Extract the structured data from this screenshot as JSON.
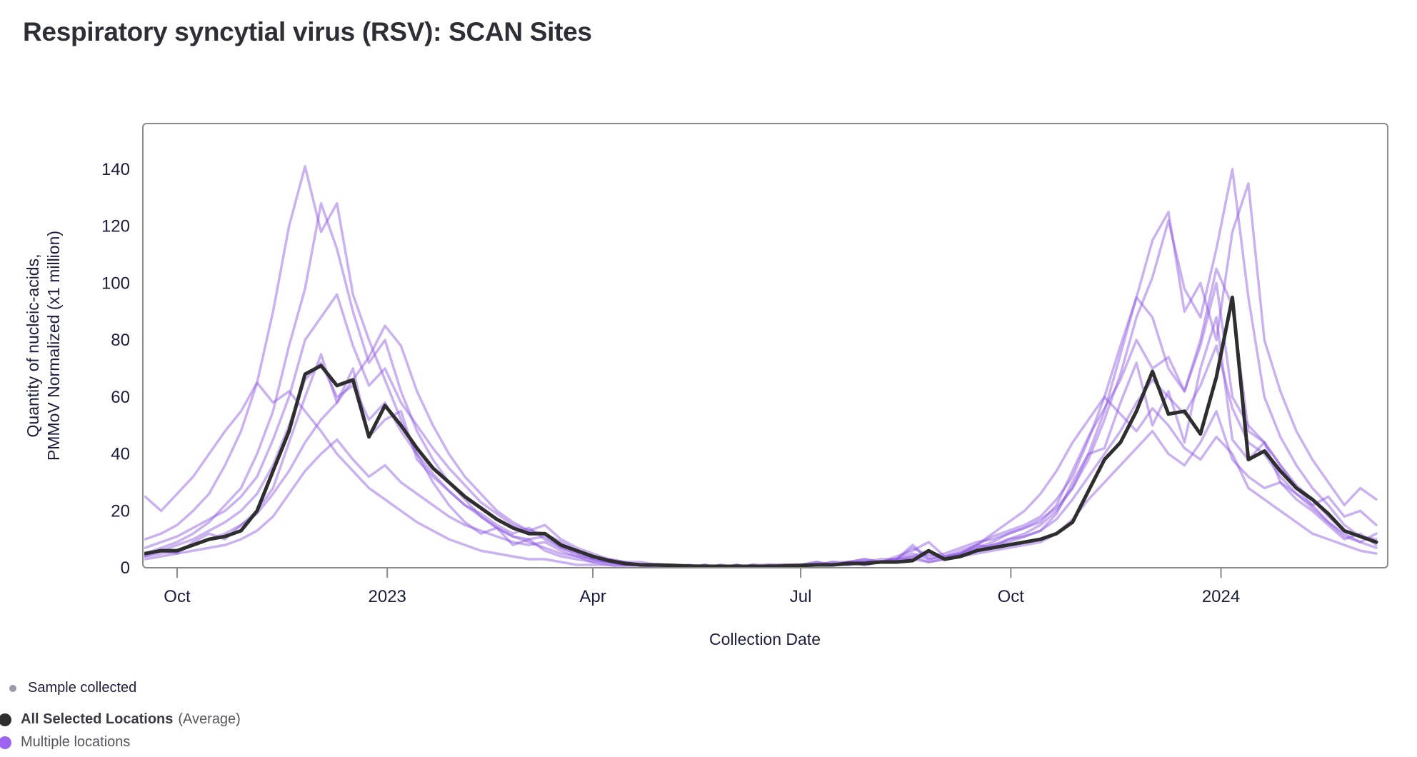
{
  "title": "Respiratory syncytial virus (RSV): SCAN Sites",
  "colors": {
    "title_text": "#2e2e36",
    "axis_line": "#8a8a8a",
    "tick_text": "#1c1c3c",
    "axis_title_text": "#1c1c3c",
    "average_line": "#2e2e2e",
    "location_line": "#8a55e0",
    "legend_sample_dot": "#9a9aa8",
    "legend_average_dot": "#2e2e2e",
    "legend_locations_dot": "#9e63f0"
  },
  "legend": {
    "sample_label": "Sample collected",
    "average_label_bold": "All Selected Locations",
    "average_label_suffix": "(Average)",
    "locations_label": "Multiple locations"
  },
  "chart_data": {
    "type": "line",
    "title": "Respiratory syncytial virus (RSV): SCAN Sites",
    "xlabel": "Collection Date",
    "ylabel_line1": "Quantity of nucleic-acids,",
    "ylabel_line2": "PMMoV Normalized (x1 million)",
    "grid": false,
    "legend_position": "bottom-left",
    "x_axis": {
      "label": "Collection Date",
      "start_date": "2022-09-16",
      "end_date": "2024-03-14",
      "ticks": [
        {
          "label": "Oct",
          "date": "2022-10-01"
        },
        {
          "label": "2023",
          "date": "2023-01-01"
        },
        {
          "label": "Apr",
          "date": "2023-04-01"
        },
        {
          "label": "Jul",
          "date": "2023-07-01"
        },
        {
          "label": "Oct",
          "date": "2023-10-01"
        },
        {
          "label": "2024",
          "date": "2024-01-01"
        }
      ]
    },
    "y_axis": {
      "ticks": [
        0,
        20,
        40,
        60,
        80,
        100,
        120,
        140
      ],
      "range": [
        0,
        156
      ]
    },
    "sampling_interval_days": 7,
    "week0_date": "2022-09-17",
    "average_series": {
      "name": "All Selected Locations (Average)",
      "values": [
        5,
        6,
        6,
        8,
        10,
        11,
        13,
        20,
        34,
        48,
        68,
        71,
        64,
        66,
        46,
        57,
        50,
        42,
        35,
        30,
        25,
        21,
        17,
        14,
        12,
        12,
        8,
        6,
        4,
        2.5,
        1.5,
        1,
        1,
        0.8,
        0.6,
        0.5,
        0.5,
        0.5,
        0.5,
        0.5,
        0.6,
        0.8,
        1,
        1,
        1.5,
        1.5,
        2,
        2,
        2.5,
        6,
        3,
        4,
        6,
        7,
        8,
        9,
        10,
        12,
        16,
        27,
        38,
        44,
        55,
        69,
        54,
        55,
        47,
        67,
        95,
        38,
        41,
        34,
        28,
        24,
        19,
        13,
        11,
        9
      ]
    },
    "location_series": {
      "name": "Multiple locations",
      "opacity": 0.45,
      "series": [
        {
          "values": [
            10,
            12,
            15,
            20,
            26,
            36,
            48,
            65,
            90,
            120,
            141,
            118,
            128,
            96,
            80,
            66,
            52,
            40,
            30,
            22,
            16,
            12,
            14,
            8,
            10,
            6,
            4,
            3,
            2,
            1,
            1,
            1,
            0,
            0,
            1,
            0,
            0,
            1,
            0,
            1,
            1,
            1,
            2,
            1,
            2,
            3,
            2,
            4,
            6,
            9,
            4,
            6,
            8,
            11,
            13,
            15,
            18,
            24,
            32,
            45,
            60,
            78,
            95,
            88,
            70,
            62,
            80,
            105,
            92,
            48,
            44,
            36,
            28,
            22,
            16,
            11,
            9,
            7
          ]
        },
        {
          "values": [
            5,
            7,
            9,
            12,
            16,
            22,
            28,
            40,
            55,
            78,
            98,
            128,
            112,
            90,
            72,
            80,
            62,
            48,
            38,
            30,
            24,
            18,
            14,
            11,
            9,
            7,
            5,
            4,
            2,
            2,
            1,
            1,
            1,
            0,
            0,
            0,
            1,
            0,
            1,
            0,
            1,
            1,
            1,
            2,
            2,
            3,
            2,
            3,
            4,
            6,
            3,
            5,
            7,
            9,
            12,
            14,
            17,
            21,
            28,
            38,
            52,
            68,
            88,
            102,
            122,
            98,
            88,
            112,
            140,
            95,
            60,
            46,
            36,
            28,
            22,
            15,
            11,
            9
          ]
        },
        {
          "values": [
            7,
            9,
            11,
            14,
            17,
            20,
            25,
            32,
            45,
            60,
            80,
            88,
            96,
            78,
            64,
            70,
            58,
            50,
            42,
            35,
            29,
            23,
            19,
            15,
            13,
            15,
            10,
            7,
            5,
            3,
            2,
            2,
            1,
            1,
            0,
            1,
            0,
            0,
            1,
            1,
            1,
            1,
            2,
            1,
            2,
            2,
            3,
            3,
            7,
            4,
            5,
            7,
            9,
            10,
            12,
            14,
            16,
            22,
            34,
            46,
            56,
            66,
            80,
            70,
            74,
            62,
            78,
            100,
            60,
            50,
            44,
            36,
            29,
            24,
            18,
            13,
            11,
            10
          ]
        },
        {
          "values": [
            4,
            6,
            5,
            9,
            12,
            10,
            15,
            20,
            28,
            44,
            60,
            75,
            58,
            70,
            46,
            52,
            55,
            38,
            32,
            27,
            22,
            19,
            15,
            12,
            14,
            10,
            7,
            5,
            3,
            2,
            1,
            1,
            1,
            1,
            0,
            0,
            1,
            0,
            0,
            1,
            0,
            1,
            1,
            2,
            1,
            2,
            2,
            3,
            8,
            3,
            4,
            5,
            8,
            7,
            10,
            11,
            13,
            19,
            30,
            40,
            42,
            58,
            72,
            50,
            62,
            44,
            70,
            88,
            45,
            38,
            44,
            30,
            24,
            20,
            15,
            10,
            12,
            8
          ]
        },
        {
          "values": [
            3,
            4,
            5,
            6,
            7,
            8,
            10,
            13,
            18,
            26,
            34,
            40,
            45,
            38,
            32,
            36,
            30,
            26,
            22,
            18,
            15,
            13,
            11,
            9,
            8,
            9,
            6,
            4,
            3,
            2,
            1,
            1,
            1,
            0,
            0,
            0,
            0,
            1,
            0,
            0,
            1,
            1,
            1,
            1,
            2,
            1,
            2,
            2,
            4,
            2,
            3,
            4,
            5,
            6,
            7,
            8,
            9,
            12,
            17,
            24,
            30,
            36,
            42,
            48,
            40,
            36,
            44,
            55,
            38,
            32,
            28,
            30,
            26,
            22,
            25,
            18,
            20,
            15
          ]
        },
        {
          "values": [
            25,
            20,
            26,
            32,
            40,
            48,
            55,
            65,
            58,
            62,
            55,
            48,
            40,
            34,
            28,
            24,
            20,
            16,
            13,
            10,
            8,
            6,
            5,
            4,
            3,
            3,
            2,
            1,
            1,
            1,
            0,
            0,
            0,
            0,
            0,
            1,
            0,
            0,
            0,
            0,
            1,
            0,
            1,
            1,
            1,
            2,
            2,
            2,
            3,
            2,
            3,
            5,
            8,
            12,
            16,
            20,
            26,
            34,
            44,
            52,
            60,
            54,
            48,
            56,
            50,
            42,
            38,
            46,
            40,
            28,
            24,
            20,
            16,
            12,
            10,
            8,
            6,
            5
          ]
        },
        {
          "values": [
            5,
            6,
            8,
            10,
            13,
            16,
            20,
            26,
            36,
            50,
            66,
            72,
            60,
            64,
            52,
            58,
            48,
            40,
            33,
            27,
            22,
            18,
            14,
            11,
            10,
            11,
            7,
            5,
            3,
            2,
            1,
            1,
            0,
            1,
            0,
            0,
            0,
            0,
            1,
            0,
            1,
            1,
            1,
            1,
            2,
            2,
            2,
            3,
            3,
            5,
            3,
            4,
            6,
            8,
            10,
            12,
            15,
            20,
            28,
            40,
            55,
            75,
            95,
            115,
            125,
            90,
            100,
            80,
            118,
            135,
            80,
            62,
            48,
            38,
            30,
            22,
            28,
            24
          ]
        },
        {
          "values": [
            4,
            5,
            6,
            8,
            10,
            12,
            15,
            19,
            26,
            34,
            44,
            52,
            58,
            66,
            74,
            85,
            78,
            62,
            50,
            40,
            32,
            26,
            20,
            16,
            13,
            12,
            9,
            6,
            4,
            3,
            2,
            1,
            1,
            0,
            0,
            1,
            0,
            1,
            0,
            0,
            0,
            1,
            1,
            1,
            2,
            1,
            2,
            3,
            5,
            3,
            4,
            5,
            7,
            8,
            9,
            11,
            13,
            17,
            24,
            32,
            40,
            48,
            58,
            66,
            60,
            54,
            64,
            78,
            56,
            44,
            40,
            32,
            26,
            21,
            16,
            12,
            9,
            12
          ]
        }
      ]
    }
  }
}
